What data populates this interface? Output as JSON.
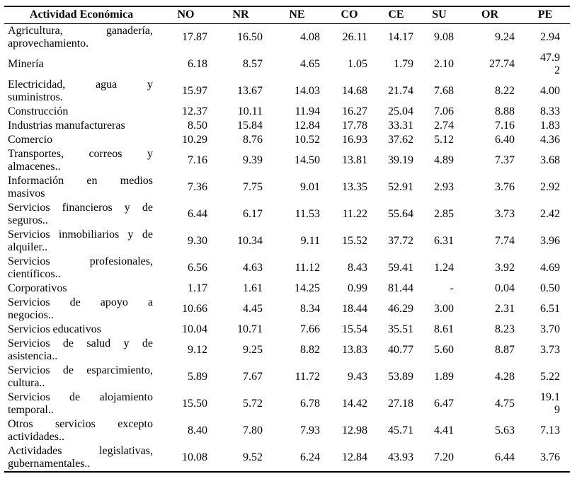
{
  "table": {
    "columns": [
      "Actividad Económica",
      "NO",
      "NR",
      "NE",
      "CO",
      "CE",
      "SU",
      "OR",
      "PE"
    ],
    "rows": [
      {
        "label": "Agricultura, ganadería, aprovechamiento.",
        "lines": [
          "Agricultura, ganadería,",
          "aprovechamiento."
        ],
        "values": [
          "17.87",
          "16.50",
          "4.08",
          "26.11",
          "14.17",
          "9.08",
          "9.24",
          "2.94"
        ]
      },
      {
        "label": "Minería",
        "lines": [
          "Minería"
        ],
        "values": [
          "6.18",
          "8.57",
          "4.65",
          "1.05",
          "1.79",
          "2.10",
          "27.74",
          "47.92"
        ]
      },
      {
        "label": "Electricidad, agua y suministros.",
        "lines": [
          "Electricidad, agua y",
          "suministros."
        ],
        "values": [
          "15.97",
          "13.67",
          "14.03",
          "14.68",
          "21.74",
          "7.68",
          "8.22",
          "4.00"
        ]
      },
      {
        "label": "Construcción",
        "lines": [
          "Construcción"
        ],
        "values": [
          "12.37",
          "10.11",
          "11.94",
          "16.27",
          "25.04",
          "7.06",
          "8.88",
          "8.33"
        ]
      },
      {
        "label": "Industrias manufactureras",
        "lines": [
          "Industrias manufactureras"
        ],
        "values": [
          "8.50",
          "15.84",
          "12.84",
          "17.78",
          "33.31",
          "2.74",
          "7.16",
          "1.83"
        ]
      },
      {
        "label": "Comercio",
        "lines": [
          "Comercio"
        ],
        "values": [
          "10.29",
          "8.76",
          "10.52",
          "16.93",
          "37.62",
          "5.12",
          "6.40",
          "4.36"
        ]
      },
      {
        "label": "Transportes, correos y almacenes..",
        "lines": [
          "Transportes, correos y",
          "almacenes.."
        ],
        "values": [
          "7.16",
          "9.39",
          "14.50",
          "13.81",
          "39.19",
          "4.89",
          "7.37",
          "3.68"
        ]
      },
      {
        "label": "Información en medios masivos",
        "lines": [
          "Información en medios",
          "masivos"
        ],
        "values": [
          "7.36",
          "7.75",
          "9.01",
          "13.35",
          "52.91",
          "2.93",
          "3.76",
          "2.92"
        ]
      },
      {
        "label": "Servicios financieros y de seguros..",
        "lines": [
          "Servicios financieros y de",
          "seguros.."
        ],
        "values": [
          "6.44",
          "6.17",
          "11.53",
          "11.22",
          "55.64",
          "2.85",
          "3.73",
          "2.42"
        ]
      },
      {
        "label": "Servicios inmobiliarios y de alquiler..",
        "lines": [
          "Servicios inmobiliarios y de",
          "alquiler.."
        ],
        "values": [
          "9.30",
          "10.34",
          "9.11",
          "15.52",
          "37.72",
          "6.31",
          "7.74",
          "3.96"
        ]
      },
      {
        "label": "Servicios profesionales, científicos..",
        "lines": [
          "Servicios profesionales,",
          "científicos.."
        ],
        "values": [
          "6.56",
          "4.63",
          "11.12",
          "8.43",
          "59.41",
          "1.24",
          "3.92",
          "4.69"
        ]
      },
      {
        "label": "Corporativos",
        "lines": [
          "Corporativos"
        ],
        "values": [
          "1.17",
          "1.61",
          "14.25",
          "0.99",
          "81.44",
          "-",
          "0.04",
          "0.50"
        ]
      },
      {
        "label": "Servicios de apoyo a negocios..",
        "lines": [
          "Servicios de apoyo a",
          "negocios.."
        ],
        "values": [
          "10.66",
          "4.45",
          "8.34",
          "18.44",
          "46.29",
          "3.00",
          "2.31",
          "6.51"
        ]
      },
      {
        "label": "Servicios educativos",
        "lines": [
          "Servicios educativos"
        ],
        "values": [
          "10.04",
          "10.71",
          "7.66",
          "15.54",
          "35.51",
          "8.61",
          "8.23",
          "3.70"
        ]
      },
      {
        "label": "Servicios de salud y de asistencia..",
        "lines": [
          "Servicios de salud y de",
          "asistencia.."
        ],
        "values": [
          "9.12",
          "9.25",
          "8.82",
          "13.83",
          "40.77",
          "5.60",
          "8.87",
          "3.73"
        ]
      },
      {
        "label": "Servicios de esparcimiento, cultura..",
        "lines": [
          "Servicios de esparcimiento,",
          "cultura.."
        ],
        "values": [
          "5.89",
          "7.67",
          "11.72",
          "9.43",
          "53.89",
          "1.89",
          "4.28",
          "5.22"
        ]
      },
      {
        "label": "Servicios de alojamiento temporal..",
        "lines": [
          "Servicios de alojamiento",
          "temporal.."
        ],
        "values": [
          "15.50",
          "5.72",
          "6.78",
          "14.42",
          "27.18",
          "6.47",
          "4.75",
          "19.19"
        ]
      },
      {
        "label": "Otros servicios excepto actividades..",
        "lines": [
          "Otros servicios excepto",
          "actividades.."
        ],
        "values": [
          "8.40",
          "7.80",
          "7.93",
          "12.98",
          "45.71",
          "4.41",
          "5.63",
          "7.13"
        ]
      },
      {
        "label": "Actividades legislativas, gubernamentales..",
        "lines": [
          "Actividades legislativas,",
          "gubernamentales.."
        ],
        "values": [
          "10.08",
          "9.52",
          "6.24",
          "12.84",
          "43.93",
          "7.20",
          "6.44",
          "3.76"
        ]
      }
    ]
  }
}
